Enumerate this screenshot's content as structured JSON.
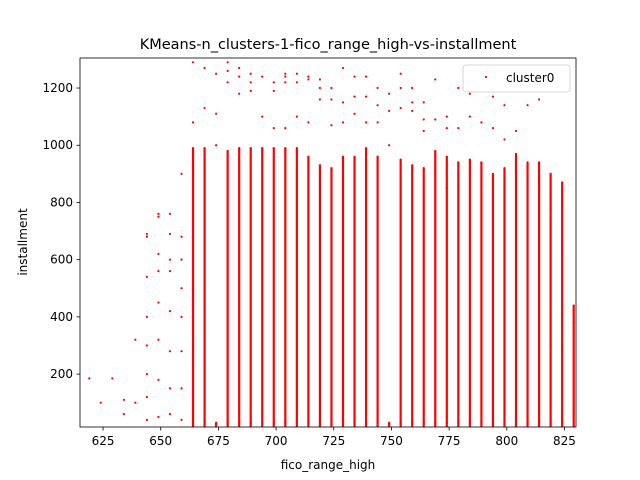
{
  "chart_data": {
    "type": "scatter",
    "title": "KMeans-n_clusters-1-fico_range_high-vs-installment",
    "xlabel": "fico_range_high",
    "ylabel": "installment",
    "xlim": [
      615,
      830
    ],
    "ylim": [
      15,
      1305
    ],
    "xticks": [
      625,
      650,
      675,
      700,
      725,
      750,
      775,
      800,
      825
    ],
    "yticks": [
      200,
      400,
      600,
      800,
      1000,
      1200
    ],
    "grid": false,
    "legend_position": "top-right",
    "series": [
      {
        "name": "cluster0",
        "color": "#ff0000",
        "marker": "dot",
        "points": [
          [
            614,
            90
          ],
          [
            619,
            185
          ],
          [
            624,
            100
          ],
          [
            629,
            185
          ],
          [
            634,
            110
          ],
          [
            634,
            60
          ],
          [
            639,
            320
          ],
          [
            639,
            100
          ],
          [
            644,
            690
          ],
          [
            644,
            680
          ],
          [
            644,
            540
          ],
          [
            644,
            400
          ],
          [
            644,
            300
          ],
          [
            644,
            200
          ],
          [
            644,
            120
          ],
          [
            644,
            40
          ],
          [
            649,
            760
          ],
          [
            649,
            750
          ],
          [
            649,
            620
          ],
          [
            649,
            560
          ],
          [
            649,
            450
          ],
          [
            649,
            320
          ],
          [
            649,
            180
          ],
          [
            649,
            50
          ],
          [
            654,
            760
          ],
          [
            654,
            690
          ],
          [
            654,
            600
          ],
          [
            654,
            560
          ],
          [
            654,
            420
          ],
          [
            654,
            280
          ],
          [
            654,
            150
          ],
          [
            654,
            60
          ],
          [
            659,
            900
          ],
          [
            659,
            680
          ],
          [
            659,
            600
          ],
          [
            659,
            500
          ],
          [
            659,
            400
          ],
          [
            659,
            280
          ],
          [
            659,
            150
          ],
          [
            659,
            40
          ],
          [
            664,
            1290
          ],
          [
            664,
            1080
          ],
          [
            664,
            990
          ],
          [
            664,
            30
          ],
          [
            669,
            1270
          ],
          [
            669,
            1130
          ],
          [
            669,
            990
          ],
          [
            669,
            30
          ],
          [
            674,
            1250
          ],
          [
            674,
            1110
          ],
          [
            674,
            1000
          ],
          [
            674,
            30
          ],
          [
            679,
            1290
          ],
          [
            679,
            1260
          ],
          [
            679,
            1220
          ],
          [
            679,
            980
          ],
          [
            679,
            30
          ],
          [
            684,
            1270
          ],
          [
            684,
            1240
          ],
          [
            684,
            1180
          ],
          [
            684,
            990
          ],
          [
            684,
            30
          ],
          [
            689,
            1250
          ],
          [
            689,
            1220
          ],
          [
            689,
            1190
          ],
          [
            689,
            990
          ],
          [
            689,
            30
          ],
          [
            694,
            1240
          ],
          [
            694,
            1100
          ],
          [
            694,
            990
          ],
          [
            694,
            30
          ],
          [
            699,
            1220
          ],
          [
            699,
            1190
          ],
          [
            699,
            1060
          ],
          [
            699,
            990
          ],
          [
            699,
            30
          ],
          [
            704,
            1250
          ],
          [
            704,
            1240
          ],
          [
            704,
            1220
          ],
          [
            704,
            1060
          ],
          [
            704,
            990
          ],
          [
            704,
            30
          ],
          [
            709,
            1250
          ],
          [
            709,
            1220
          ],
          [
            709,
            1100
          ],
          [
            709,
            990
          ],
          [
            709,
            30
          ],
          [
            714,
            1240
          ],
          [
            714,
            1230
          ],
          [
            714,
            1080
          ],
          [
            714,
            960
          ],
          [
            714,
            30
          ],
          [
            719,
            1230
          ],
          [
            719,
            1200
          ],
          [
            719,
            1160
          ],
          [
            719,
            930
          ],
          [
            719,
            30
          ],
          [
            724,
            1200
          ],
          [
            724,
            1160
          ],
          [
            724,
            1070
          ],
          [
            724,
            920
          ],
          [
            724,
            30
          ],
          [
            729,
            1270
          ],
          [
            729,
            1150
          ],
          [
            729,
            1080
          ],
          [
            729,
            960
          ],
          [
            729,
            30
          ],
          [
            734,
            1240
          ],
          [
            734,
            1170
          ],
          [
            734,
            1110
          ],
          [
            734,
            960
          ],
          [
            734,
            30
          ],
          [
            739,
            1240
          ],
          [
            739,
            1170
          ],
          [
            739,
            1080
          ],
          [
            739,
            990
          ],
          [
            739,
            30
          ],
          [
            744,
            1200
          ],
          [
            744,
            1140
          ],
          [
            744,
            1080
          ],
          [
            744,
            960
          ],
          [
            744,
            30
          ],
          [
            749,
            1180
          ],
          [
            749,
            1120
          ],
          [
            749,
            1000
          ],
          [
            749,
            30
          ],
          [
            754,
            1250
          ],
          [
            754,
            1200
          ],
          [
            754,
            1130
          ],
          [
            754,
            950
          ],
          [
            754,
            30
          ],
          [
            759,
            1200
          ],
          [
            759,
            1150
          ],
          [
            759,
            1120
          ],
          [
            759,
            930
          ],
          [
            759,
            30
          ],
          [
            764,
            1150
          ],
          [
            764,
            1090
          ],
          [
            764,
            1050
          ],
          [
            764,
            920
          ],
          [
            764,
            30
          ],
          [
            769,
            1230
          ],
          [
            769,
            1090
          ],
          [
            769,
            980
          ],
          [
            769,
            900
          ],
          [
            769,
            30
          ],
          [
            774,
            1100
          ],
          [
            774,
            1060
          ],
          [
            774,
            960
          ],
          [
            774,
            850
          ],
          [
            774,
            30
          ],
          [
            779,
            1200
          ],
          [
            779,
            1060
          ],
          [
            779,
            940
          ],
          [
            779,
            860
          ],
          [
            779,
            30
          ],
          [
            784,
            1240
          ],
          [
            784,
            1180
          ],
          [
            784,
            1100
          ],
          [
            784,
            950
          ],
          [
            784,
            30
          ],
          [
            789,
            1080
          ],
          [
            789,
            940
          ],
          [
            789,
            860
          ],
          [
            789,
            30
          ],
          [
            794,
            1170
          ],
          [
            794,
            1060
          ],
          [
            794,
            900
          ],
          [
            794,
            30
          ],
          [
            799,
            1140
          ],
          [
            799,
            1020
          ],
          [
            799,
            920
          ],
          [
            799,
            30
          ],
          [
            804,
            1220
          ],
          [
            804,
            1050
          ],
          [
            804,
            970
          ],
          [
            804,
            30
          ],
          [
            809,
            1200
          ],
          [
            809,
            1140
          ],
          [
            809,
            940
          ],
          [
            809,
            30
          ],
          [
            814,
            1160
          ],
          [
            814,
            940
          ],
          [
            814,
            840
          ],
          [
            814,
            30
          ],
          [
            819,
            900
          ],
          [
            819,
            780
          ],
          [
            819,
            300
          ],
          [
            819,
            30
          ],
          [
            824,
            870
          ],
          [
            824,
            800
          ],
          [
            824,
            640
          ],
          [
            824,
            300
          ],
          [
            824,
            30
          ],
          [
            829,
            440
          ],
          [
            829,
            380
          ]
        ]
      }
    ]
  }
}
